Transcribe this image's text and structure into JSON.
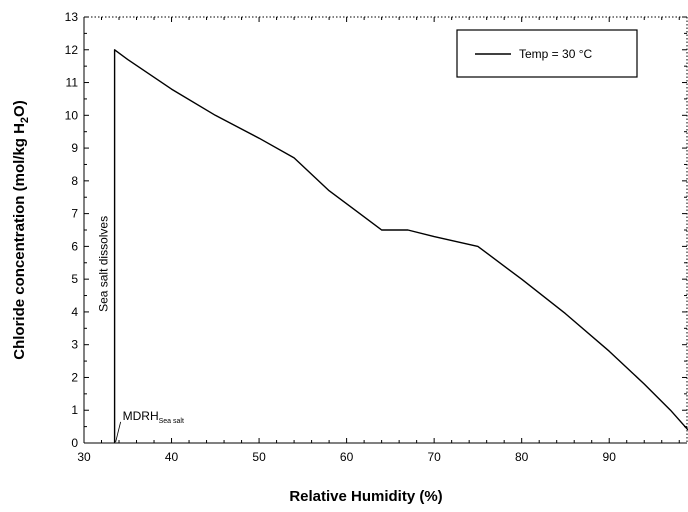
{
  "chart_data": {
    "type": "line",
    "title": "",
    "xlabel": "Relative Humidity (%)",
    "ylabel": "Chloride concentration (mol/kg H2O)",
    "ylabel_parts": {
      "before": "Chloride concentration (mol/kg H",
      "sub": "2",
      "after": "O)"
    },
    "xlim": [
      30,
      99
    ],
    "ylim": [
      0,
      13
    ],
    "xticks": [
      30,
      40,
      50,
      60,
      70,
      80,
      90
    ],
    "yticks": [
      0,
      1,
      2,
      3,
      4,
      5,
      6,
      7,
      8,
      9,
      10,
      11,
      12,
      13
    ],
    "grid": false,
    "legend": {
      "position": "top-right",
      "entries": [
        "Temp = 30 °C"
      ]
    },
    "series": [
      {
        "name": "Temp = 30 °C",
        "color": "#000000",
        "x": [
          33.5,
          33.5,
          35,
          40,
          45,
          50,
          54,
          58,
          61,
          64,
          67,
          70,
          75,
          80,
          85,
          90,
          94,
          97,
          99
        ],
        "y": [
          0,
          12.0,
          11.7,
          10.8,
          10.0,
          9.3,
          8.7,
          7.7,
          7.1,
          6.5,
          6.5,
          6.3,
          6.0,
          5.0,
          3.95,
          2.8,
          1.8,
          1.0,
          0.4
        ]
      }
    ],
    "annotations": [
      {
        "text": "Sea salt dissolves",
        "x": 33.5,
        "y": 4.0,
        "rotation": -90
      },
      {
        "text": "MDRH",
        "subscript": "Sea salt",
        "x": 33.5,
        "y": 0.4
      }
    ]
  }
}
